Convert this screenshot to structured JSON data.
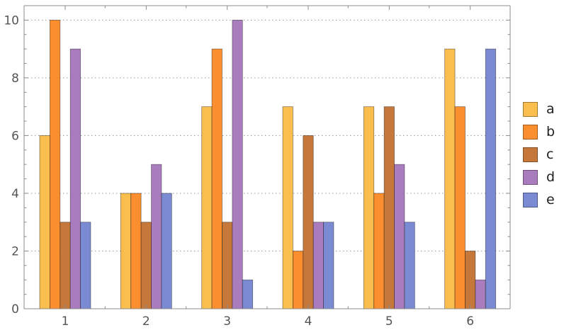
{
  "chart_data": {
    "type": "bar",
    "title": "",
    "xlabel": "",
    "ylabel": "",
    "categories": [
      "1",
      "2",
      "3",
      "4",
      "5",
      "6"
    ],
    "ylim": [
      0,
      10.5
    ],
    "yticks": [
      "0",
      "2",
      "4",
      "6",
      "8",
      "10"
    ],
    "grid": "horizontal dotted at major y ticks",
    "legend_position": "right",
    "series": [
      {
        "name": "a",
        "color": "#F9BE4E",
        "values": [
          6,
          4,
          7,
          7,
          7,
          9
        ]
      },
      {
        "name": "b",
        "color": "#FB8F30",
        "values": [
          10,
          4,
          9,
          2,
          4,
          7
        ]
      },
      {
        "name": "c",
        "color": "#C6783A",
        "values": [
          3,
          3,
          3,
          6,
          7,
          2
        ]
      },
      {
        "name": "d",
        "color": "#A97DBD",
        "values": [
          9,
          5,
          10,
          3,
          5,
          1
        ]
      },
      {
        "name": "e",
        "color": "#7B8BD3",
        "values": [
          3,
          4,
          1,
          3,
          3,
          9
        ]
      }
    ]
  }
}
